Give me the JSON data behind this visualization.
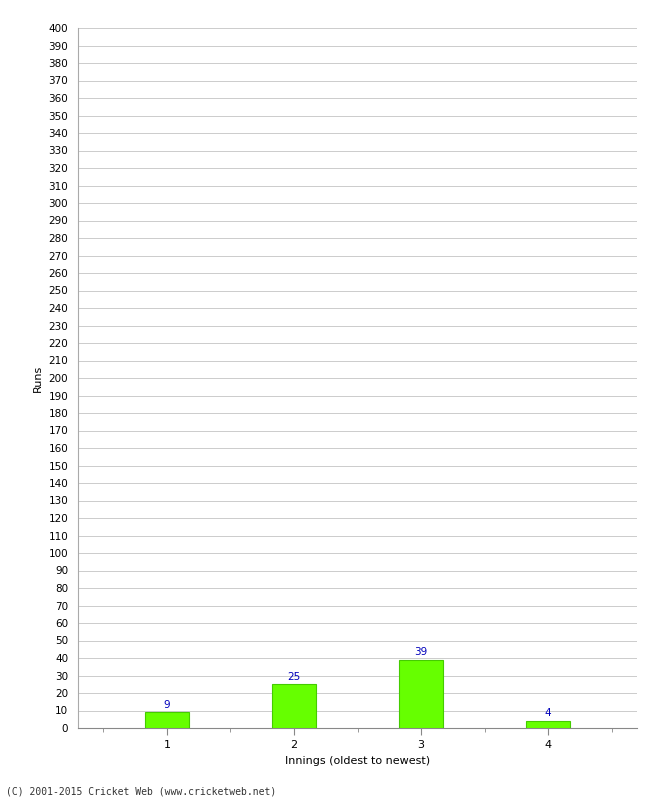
{
  "categories": [
    "1",
    "2",
    "3",
    "4"
  ],
  "values": [
    9,
    25,
    39,
    4
  ],
  "bar_color": "#66ff00",
  "bar_edge_color": "#44cc00",
  "xlabel": "Innings (oldest to newest)",
  "ylabel": "Runs",
  "ylim_max": 400,
  "annotation_color": "#0000bb",
  "annotation_fontsize": 7.5,
  "background_color": "#ffffff",
  "grid_color": "#cccccc",
  "footer": "(C) 2001-2015 Cricket Web (www.cricketweb.net)",
  "bar_width": 0.35,
  "bar_positions": [
    1,
    2,
    3,
    4
  ],
  "xlim": [
    0.3,
    4.7
  ]
}
